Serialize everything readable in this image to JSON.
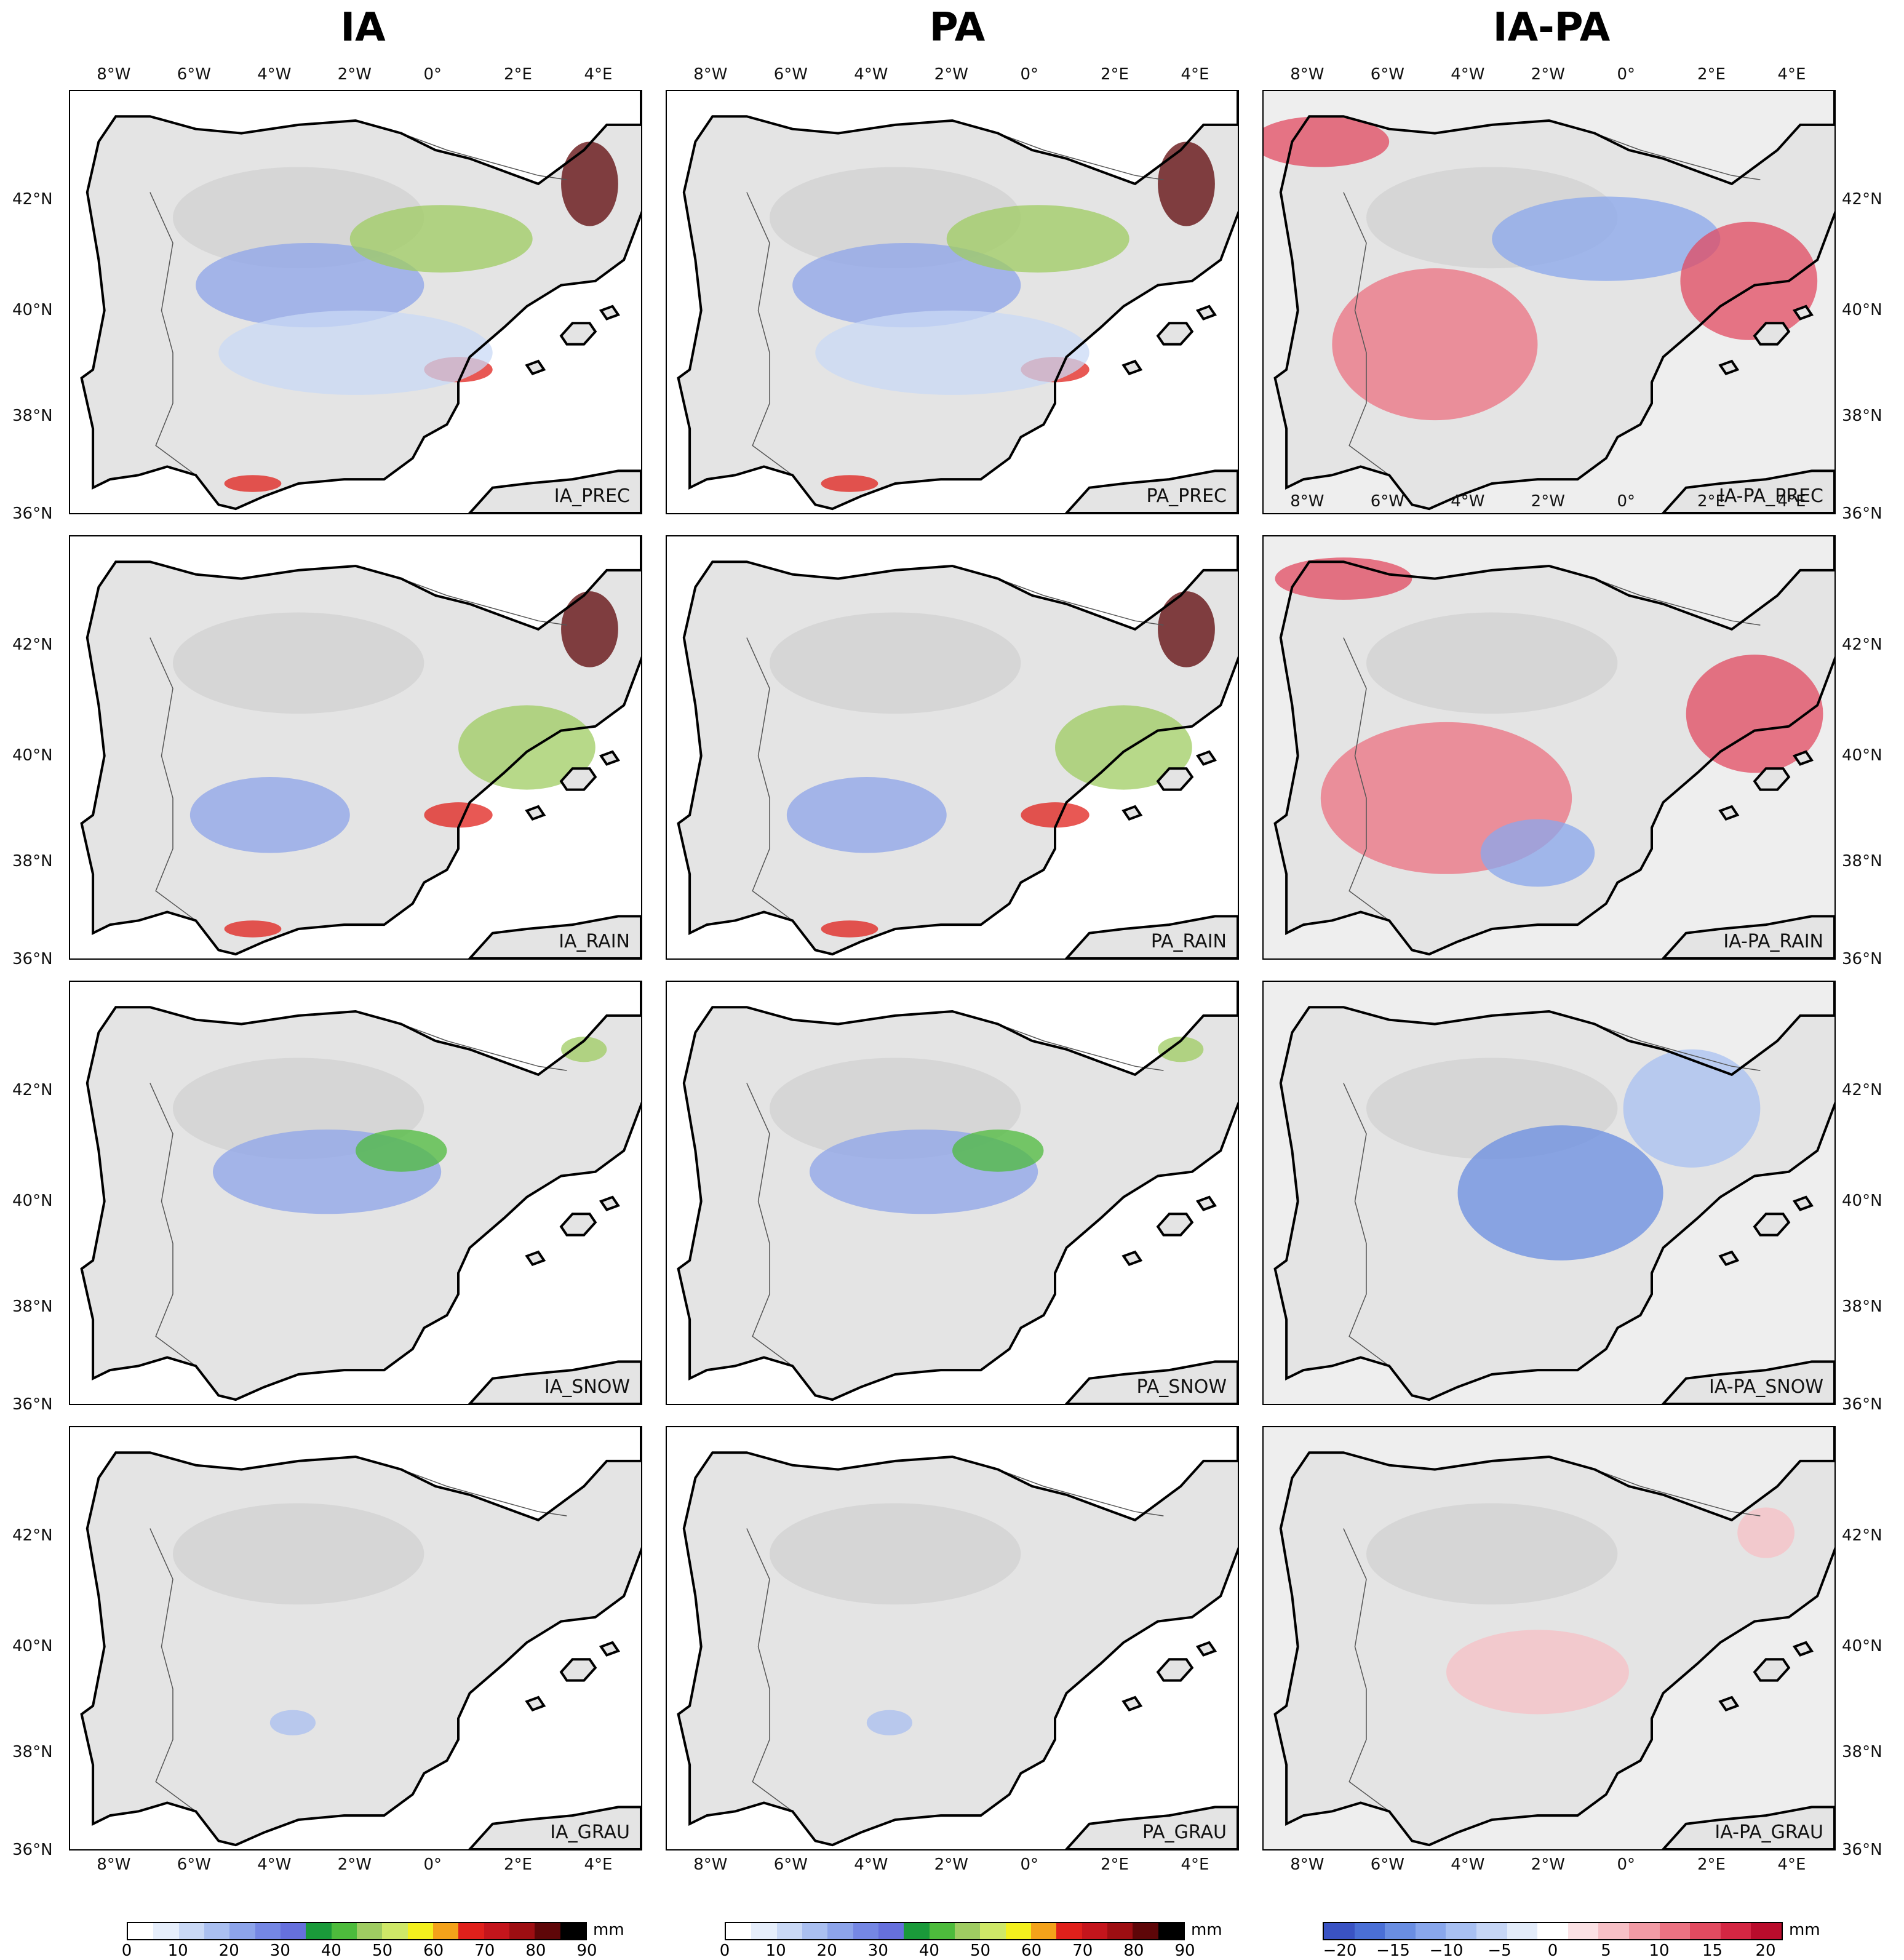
{
  "columns": [
    "IA",
    "PA",
    "IA-PA"
  ],
  "panels": [
    [
      "IA_PREC",
      "PA_PREC",
      "IA-PA_PREC"
    ],
    [
      "IA_RAIN",
      "PA_RAIN",
      "IA-PA_RAIN"
    ],
    [
      "IA_SNOW",
      "PA_SNOW",
      "IA-PA_SNOW"
    ],
    [
      "IA_GRAU",
      "PA_GRAU",
      "IA-PA_GRAU"
    ]
  ],
  "lon_ticks": [
    "8°W",
    "6°W",
    "4°W",
    "2°W",
    "0°",
    "2°E",
    "4°E"
  ],
  "lat_ticks": [
    "42°N",
    "40°N",
    "38°N",
    "36°N"
  ],
  "colorbars": {
    "unit": "mm",
    "abs_ticks": [
      "0",
      "10",
      "20",
      "30",
      "40",
      "50",
      "60",
      "70",
      "80",
      "90"
    ],
    "abs_colors": [
      "#ffffff",
      "#e6eefb",
      "#cad9f6",
      "#aabff0",
      "#8da4ea",
      "#7587e4",
      "#6670dd",
      "#1a9a3a",
      "#4dbb3c",
      "#9fcc62",
      "#cfe868",
      "#f4f01e",
      "#f4a21a",
      "#e0201b",
      "#c4151c",
      "#9e0e12",
      "#5e0608",
      "#000000"
    ],
    "diff_ticks": [
      "−20",
      "−15",
      "−10",
      "−5",
      "0",
      "5",
      "10",
      "15",
      "20"
    ],
    "diff_colors": [
      "#3a53c4",
      "#4a6fd6",
      "#6a8ee2",
      "#89a7ec",
      "#a8c0f2",
      "#c6d6f6",
      "#e3ecfa",
      "#ffffff",
      "#fbe1e4",
      "#f7c0c6",
      "#f29ba5",
      "#ec7282",
      "#e24a60",
      "#d42643",
      "#b90c2c"
    ]
  },
  "colors": {
    "land": "#e4e4e4",
    "sea": "#ffffff",
    "diff_sea": "#eeeeee",
    "coast": "#000000"
  }
}
